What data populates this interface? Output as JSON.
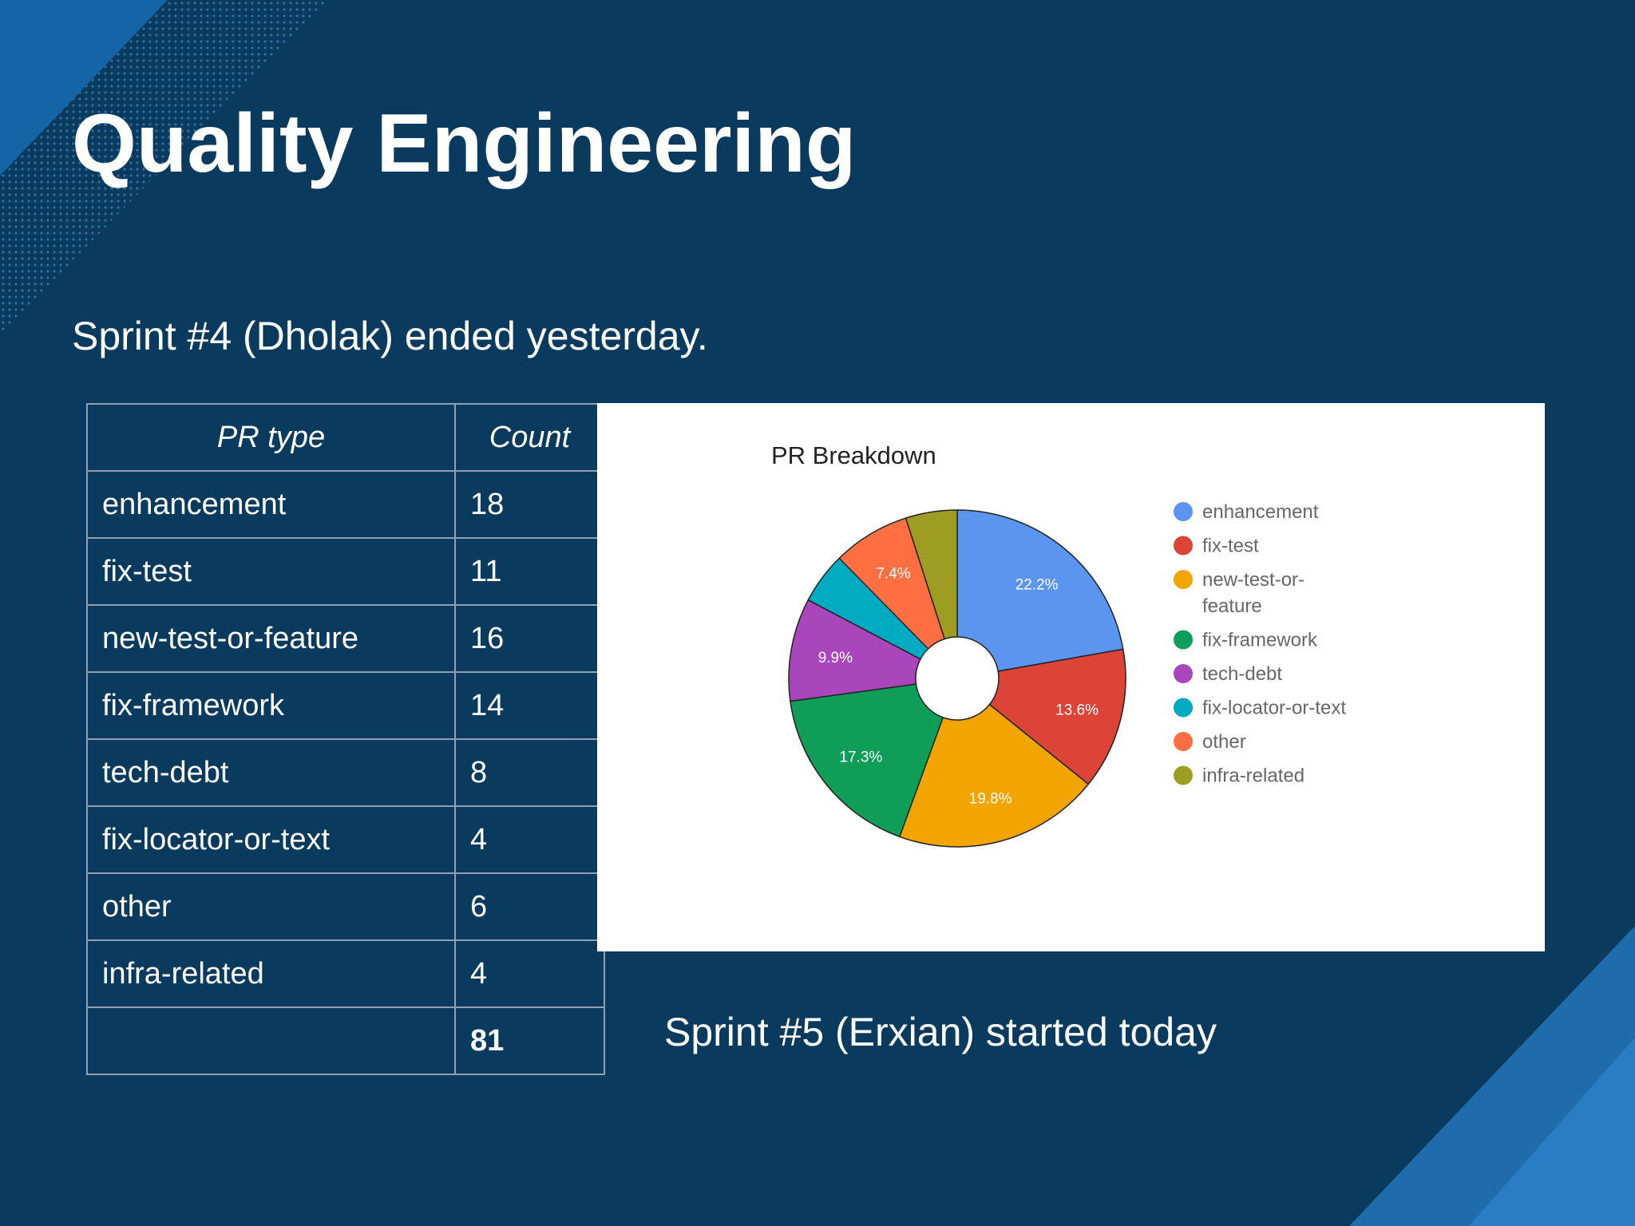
{
  "slide": {
    "title": "Quality Engineering",
    "subtitle": "Sprint #4 (Dholak) ended yesterday.",
    "footer": "Sprint #5 (Erxian) started today"
  },
  "table": {
    "headers": [
      "PR type",
      "Count"
    ],
    "rows": [
      {
        "type": "enhancement",
        "count": "18"
      },
      {
        "type": "fix-test",
        "count": "11"
      },
      {
        "type": "new-test-or-feature",
        "count": "16"
      },
      {
        "type": "fix-framework",
        "count": "14"
      },
      {
        "type": "tech-debt",
        "count": "8"
      },
      {
        "type": "fix-locator-or-text",
        "count": "4"
      },
      {
        "type": "other",
        "count": "6"
      },
      {
        "type": "infra-related",
        "count": "4"
      }
    ],
    "total": "81"
  },
  "chart_data": {
    "type": "pie",
    "title": "PR Breakdown",
    "donut": true,
    "legend_position": "right",
    "categories": [
      "enhancement",
      "fix-test",
      "new-test-or-feature",
      "fix-framework",
      "tech-debt",
      "fix-locator-or-text",
      "other",
      "infra-related"
    ],
    "values": [
      18,
      11,
      16,
      14,
      8,
      4,
      6,
      4
    ],
    "slice_labels": [
      "22.2%",
      "13.6%",
      "19.8%",
      "17.3%",
      "9.9%",
      "",
      "7.4%",
      ""
    ],
    "colors": [
      "#5b95f0",
      "#db4437",
      "#f2a400",
      "#109d58",
      "#aa46bb",
      "#00abc1",
      "#ff6f42",
      "#9d9d24"
    ],
    "legend_lines": [
      [
        "enhancement"
      ],
      [
        "fix-test"
      ],
      [
        "new-test-or-",
        "feature"
      ],
      [
        "fix-framework"
      ],
      [
        "tech-debt"
      ],
      [
        "fix-locator-or-text"
      ],
      [
        "other"
      ],
      [
        "infra-related"
      ]
    ]
  }
}
